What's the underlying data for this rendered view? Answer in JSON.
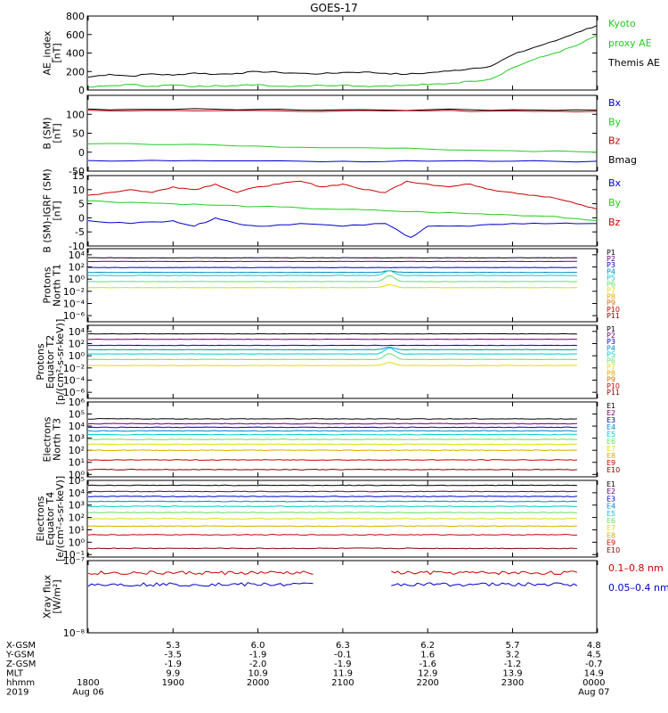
{
  "title": "GOES-17",
  "colors": {
    "black": "#000000",
    "green": "#22cc22",
    "blue": "#0000cc",
    "red": "#cc0000",
    "darkred": "#880000",
    "cyan": "#00cccc",
    "lightgreen": "#66dd66",
    "yellow": "#dddd00",
    "orange": "#dd9900",
    "purple": "#660066",
    "navy": "#000066"
  },
  "chart_data": [
    {
      "id": "ae",
      "type": "line",
      "ylabel": [
        "AE_index",
        "[nT]"
      ],
      "ylim": [
        0,
        800
      ],
      "yscale": "linear",
      "yticks": [
        0,
        200,
        400,
        600,
        800
      ],
      "ytick_labels": [
        "0",
        "200",
        "400",
        "600",
        "800"
      ],
      "legend": [
        {
          "text": "Kyoto",
          "color": "#22cc22"
        },
        {
          "text": "proxy AE",
          "color": "#22cc22"
        },
        {
          "text": "Themis AE",
          "color": "#000000"
        }
      ],
      "series": [
        {
          "color": "#000000",
          "x": [
            0,
            0.25,
            0.5,
            0.75,
            1,
            1.25,
            1.5,
            1.75,
            2,
            2.25,
            2.5,
            2.75,
            3,
            3.25,
            3.5,
            3.75,
            4,
            4.25,
            4.5,
            4.75,
            5,
            5.25,
            5.5,
            5.75,
            6,
            6.25,
            6.5,
            6.75,
            7,
            7.25,
            7.5,
            7.75,
            8
          ],
          "y": [
            140,
            170,
            150,
            175,
            160,
            185,
            170,
            180,
            200,
            190,
            180,
            175,
            190,
            195,
            180,
            170,
            185,
            205,
            230,
            260,
            380,
            460,
            530,
            620,
            700,
            680,
            640,
            560,
            430,
            310,
            230,
            170,
            200
          ]
        },
        {
          "color": "#22cc22",
          "x": [
            0,
            0.25,
            0.5,
            0.75,
            1,
            1.25,
            1.5,
            1.75,
            2,
            2.25,
            2.5,
            2.75,
            3,
            3.25,
            3.5,
            3.75,
            4,
            4.25,
            4.5,
            4.75,
            5,
            5.25,
            5.5,
            5.75,
            6,
            6.25,
            6.5,
            6.75,
            7,
            7.25,
            7.5,
            7.75,
            8
          ],
          "y": [
            30,
            45,
            60,
            40,
            55,
            35,
            50,
            45,
            60,
            40,
            45,
            50,
            55,
            40,
            45,
            50,
            60,
            70,
            95,
            120,
            240,
            330,
            400,
            480,
            590,
            600,
            560,
            460,
            320,
            180,
            120,
            80,
            100
          ]
        }
      ]
    },
    {
      "id": "bsm",
      "type": "line",
      "ylabel": [
        "B (SM)",
        "[nT]"
      ],
      "ylim": [
        -50,
        150
      ],
      "yscale": "linear",
      "yticks": [
        -50,
        0,
        50,
        100
      ],
      "ytick_labels": [
        "-50",
        "0",
        "50",
        "100"
      ],
      "legend": [
        {
          "text": "Bx",
          "color": "#0000cc"
        },
        {
          "text": "By",
          "color": "#22cc22"
        },
        {
          "text": "Bz",
          "color": "#cc0000"
        },
        {
          "text": "Bmag",
          "color": "#000000"
        }
      ],
      "series": [
        {
          "color": "#000000",
          "x": [
            0,
            1,
            2,
            3,
            4,
            5,
            6,
            6.5,
            7,
            7.5,
            8
          ],
          "y": [
            114,
            113,
            113,
            112,
            112,
            112,
            111,
            110,
            107,
            107,
            110
          ]
        },
        {
          "color": "#cc0000",
          "x": [
            0,
            1,
            2,
            3,
            4,
            5,
            6,
            6.5,
            7,
            7.5,
            8
          ],
          "y": [
            111,
            110,
            110,
            109,
            109,
            109,
            108,
            107,
            104,
            104,
            107
          ]
        },
        {
          "color": "#22cc22",
          "x": [
            0,
            1,
            2,
            3,
            4,
            5,
            6,
            6.5,
            7,
            7.5,
            8
          ],
          "y": [
            22,
            20,
            16,
            12,
            8,
            4,
            0,
            -2,
            -5,
            -8,
            -12
          ]
        },
        {
          "color": "#0000cc",
          "x": [
            0,
            1,
            2,
            3,
            4,
            5,
            6,
            6.5,
            7,
            7.5,
            8
          ],
          "y": [
            -22,
            -23,
            -23,
            -24,
            -24,
            -24,
            -24,
            -24,
            -24,
            -23,
            -20
          ]
        }
      ]
    },
    {
      "id": "bdiff",
      "type": "line",
      "ylabel": [
        "B (SM)-IGRF (SM)",
        "[nT]"
      ],
      "ylim": [
        -10,
        15
      ],
      "yscale": "linear",
      "yticks": [
        -10,
        -5,
        0,
        5,
        10,
        15
      ],
      "ytick_labels": [
        "-10",
        "-5",
        "0",
        "5",
        "10",
        "15"
      ],
      "legend": [
        {
          "text": "Bx",
          "color": "#0000cc"
        },
        {
          "text": "By",
          "color": "#22cc22"
        },
        {
          "text": "Bz",
          "color": "#cc0000"
        }
      ],
      "series": [
        {
          "color": "#cc0000",
          "x": [
            0,
            0.25,
            0.5,
            0.75,
            1,
            1.25,
            1.5,
            1.75,
            2,
            2.25,
            2.5,
            2.75,
            3,
            3.25,
            3.5,
            3.75,
            4,
            4.25,
            4.5,
            4.75,
            5,
            5.25,
            5.5,
            5.75,
            6,
            6.25,
            6.5,
            6.75,
            7,
            7.25,
            7.5,
            7.75,
            8
          ],
          "y": [
            8,
            9,
            10,
            9,
            11,
            10,
            12,
            9,
            11,
            12,
            13,
            11,
            12,
            10,
            9,
            13,
            12,
            11,
            12,
            10,
            9,
            8,
            7,
            5,
            3,
            6,
            4,
            0,
            2,
            -1,
            -2,
            0,
            -1
          ]
        },
        {
          "color": "#22cc22",
          "x": [
            0,
            0.5,
            1,
            1.5,
            2,
            2.5,
            3,
            3.5,
            4,
            4.5,
            5,
            5.5,
            6,
            6.5,
            7,
            7.5,
            8
          ],
          "y": [
            6,
            5.5,
            5,
            4.5,
            4,
            3.5,
            3,
            2.5,
            2,
            1.5,
            1,
            0.5,
            -1,
            -3,
            -4,
            -4,
            -3
          ]
        },
        {
          "color": "#0000cc",
          "x": [
            0,
            0.5,
            1,
            1.25,
            1.5,
            1.75,
            2,
            2.5,
            3,
            3.5,
            3.8,
            4,
            4.5,
            5,
            5.5,
            6,
            6.5,
            7,
            7.25,
            7.5,
            7.75,
            8
          ],
          "y": [
            -1,
            -2,
            -1,
            -3,
            0,
            -2,
            -3,
            -2,
            -3,
            -2,
            -7,
            -3,
            -3,
            -2,
            -2,
            -2,
            -3,
            -3,
            -6,
            -1,
            -6,
            -2
          ]
        }
      ]
    },
    {
      "id": "pn",
      "type": "line",
      "ylabel": [
        "Protons",
        "North T1"
      ],
      "ylim": [
        -7,
        5
      ],
      "yscale": "log",
      "yticks": [
        -6,
        -4,
        -2,
        0,
        2,
        4
      ],
      "ytick_labels": [
        "10⁻⁶",
        "10⁻⁴",
        "10⁻²",
        "10⁰",
        "10²",
        "10⁴"
      ],
      "legend": [
        {
          "text": "P1",
          "color": "#000000"
        },
        {
          "text": "P2",
          "color": "#660066"
        },
        {
          "text": "P3",
          "color": "#0000cc"
        },
        {
          "text": "P4",
          "color": "#0088cc"
        },
        {
          "text": "P5",
          "color": "#00cccc"
        },
        {
          "text": "P6",
          "color": "#66dd66"
        },
        {
          "text": "P7",
          "color": "#dddd00"
        },
        {
          "text": "P8",
          "color": "#ddaa00"
        },
        {
          "text": "P9",
          "color": "#dd6600"
        },
        {
          "text": "P10",
          "color": "#cc0000"
        },
        {
          "text": "P11",
          "color": "#880000"
        }
      ],
      "series": [
        {
          "color": "#000000",
          "level": 3.5,
          "bump": 0
        },
        {
          "color": "#660066",
          "level": 2.9,
          "bump": 0
        },
        {
          "color": "#0000cc",
          "level": 1.9,
          "bump": 0
        },
        {
          "color": "#0088cc",
          "level": 1.1,
          "bump": 0.3
        },
        {
          "color": "#00cccc",
          "level": 0.6,
          "bump": 0.8
        },
        {
          "color": "#66dd66",
          "level": -0.4,
          "bump": 1.0
        },
        {
          "color": "#dddd00",
          "level": -1.4,
          "bump": 0.5
        }
      ]
    },
    {
      "id": "pe",
      "type": "line",
      "ylabel": [
        "Protons",
        "Equator T2",
        "[p/(cm²-s-sr-keV)]"
      ],
      "ylim": [
        -7,
        5
      ],
      "yscale": "log",
      "yticks": [
        -6,
        -4,
        -2,
        0,
        2,
        4
      ],
      "ytick_labels": [
        "10⁻⁶",
        "10⁻⁴",
        "10⁻²",
        "10⁰",
        "10²",
        "10⁴"
      ],
      "legend": [
        {
          "text": "P1",
          "color": "#000000"
        },
        {
          "text": "P2",
          "color": "#660066"
        },
        {
          "text": "P3",
          "color": "#0000cc"
        },
        {
          "text": "P4",
          "color": "#0088cc"
        },
        {
          "text": "P5",
          "color": "#00cccc"
        },
        {
          "text": "P6",
          "color": "#66dd66"
        },
        {
          "text": "P7",
          "color": "#dddd00"
        },
        {
          "text": "P8",
          "color": "#ddaa00"
        },
        {
          "text": "P9",
          "color": "#dd6600"
        },
        {
          "text": "P10",
          "color": "#cc0000"
        },
        {
          "text": "P11",
          "color": "#880000"
        }
      ],
      "series": [
        {
          "color": "#000000",
          "level": 3.6,
          "bump": 0
        },
        {
          "color": "#660066",
          "level": 2.7,
          "bump": 0
        },
        {
          "color": "#0000cc",
          "level": 1.7,
          "bump": 0
        },
        {
          "color": "#0088cc",
          "level": 1.0,
          "bump": 0.4
        },
        {
          "color": "#00cccc",
          "level": 0.3,
          "bump": 1.0
        },
        {
          "color": "#66dd66",
          "level": -0.6,
          "bump": 1.0
        },
        {
          "color": "#dddd00",
          "level": -1.6,
          "bump": 0.5
        }
      ]
    },
    {
      "id": "en",
      "type": "line",
      "ylabel": [
        "Electrons",
        "North T3"
      ],
      "ylim": [
        -0.2,
        6
      ],
      "yscale": "log",
      "yticks": [
        0,
        1,
        2,
        3,
        4,
        5,
        6
      ],
      "ytick_labels": [
        "10⁰",
        "10¹",
        "10²",
        "10³",
        "10⁴",
        "10⁵",
        "10⁶"
      ],
      "legend": [
        {
          "text": "E1",
          "color": "#000000"
        },
        {
          "text": "E2",
          "color": "#660066"
        },
        {
          "text": "E3",
          "color": "#0000cc"
        },
        {
          "text": "E4",
          "color": "#0088cc"
        },
        {
          "text": "E5",
          "color": "#00cccc"
        },
        {
          "text": "E6",
          "color": "#66dd66"
        },
        {
          "text": "E7",
          "color": "#dddd00"
        },
        {
          "text": "E8",
          "color": "#ddaa00"
        },
        {
          "text": "E9",
          "color": "#cc0000"
        },
        {
          "text": "E10",
          "color": "#880000"
        }
      ],
      "series": [
        {
          "color": "#000000",
          "level": 4.6,
          "bump": 0
        },
        {
          "color": "#660066",
          "level": 4.2,
          "bump": 0
        },
        {
          "color": "#0000cc",
          "level": 3.9,
          "bump": 0
        },
        {
          "color": "#0088cc",
          "level": 3.6,
          "bump": 0
        },
        {
          "color": "#00cccc",
          "level": 3.3,
          "bump": 0
        },
        {
          "color": "#66dd66",
          "level": 2.9,
          "bump": 0
        },
        {
          "color": "#dddd00",
          "level": 2.5,
          "bump": 0
        },
        {
          "color": "#ddaa00",
          "level": 2.0,
          "bump": 0
        },
        {
          "color": "#cc0000",
          "level": 1.2,
          "bump": 0
        },
        {
          "color": "#880000",
          "level": 0.4,
          "bump": 0
        }
      ]
    },
    {
      "id": "ee",
      "type": "line",
      "ylabel": [
        "Electrons",
        "Equator T4",
        "[e/(cm²-s-sr-keV)]"
      ],
      "ylim": [
        -1.2,
        5
      ],
      "yscale": "log",
      "yticks": [
        -1,
        0,
        1,
        2,
        3,
        4,
        5
      ],
      "ytick_labels": [
        "10⁻¹",
        "10⁰",
        "10¹",
        "10²",
        "10³",
        "10⁴",
        "10⁵"
      ],
      "legend": [
        {
          "text": "E1",
          "color": "#000000"
        },
        {
          "text": "E2",
          "color": "#660066"
        },
        {
          "text": "E3",
          "color": "#0000cc"
        },
        {
          "text": "E4",
          "color": "#0088cc"
        },
        {
          "text": "E5",
          "color": "#00cccc"
        },
        {
          "text": "E6",
          "color": "#66dd66"
        },
        {
          "text": "E7",
          "color": "#dddd00"
        },
        {
          "text": "E8",
          "color": "#ddaa00"
        },
        {
          "text": "E9",
          "color": "#cc0000"
        },
        {
          "text": "E10",
          "color": "#880000"
        }
      ],
      "series": [
        {
          "color": "#000000",
          "level": 4.6,
          "bump": 0
        },
        {
          "color": "#660066",
          "level": 4.1,
          "bump": 0
        },
        {
          "color": "#0000cc",
          "level": 3.7,
          "bump": 0
        },
        {
          "color": "#0088cc",
          "level": 3.3,
          "bump": 0
        },
        {
          "color": "#00cccc",
          "level": 2.9,
          "bump": 0
        },
        {
          "color": "#66dd66",
          "level": 2.4,
          "bump": 0
        },
        {
          "color": "#dddd00",
          "level": 1.9,
          "bump": 0
        },
        {
          "color": "#ddaa00",
          "level": 1.3,
          "bump": 0
        },
        {
          "color": "#cc0000",
          "level": 0.6,
          "bump": 0
        },
        {
          "color": "#880000",
          "level": -0.5,
          "bump": 0
        }
      ]
    },
    {
      "id": "xray",
      "type": "line",
      "ylabel": [
        "Xray flux",
        "[W/m²]"
      ],
      "ylim": [
        -8,
        -7
      ],
      "yscale": "log",
      "yticks": [
        -8,
        -7
      ],
      "ytick_labels": [
        "10⁻⁸",
        "10⁻⁷"
      ],
      "legend": [
        {
          "text": "0.1–0.8 nm",
          "color": "#cc0000"
        },
        {
          "text": "0.05–0.4 nm",
          "color": "#0000cc"
        }
      ],
      "series": [
        {
          "color": "#cc0000",
          "level": -7.17,
          "gap": [
            2.65,
            3.55
          ]
        },
        {
          "color": "#0000cc",
          "level": -7.33,
          "gap": [
            2.65,
            3.55
          ]
        }
      ]
    }
  ],
  "x_axis": {
    "range_hours": [
      0,
      8
    ],
    "row_labels": [
      "X-GSM",
      "Y-GSM",
      "Z-GSM",
      "MLT",
      "hhmm",
      "2019"
    ],
    "columns": [
      {
        "x": 0,
        "values": [
          "",
          "",
          "",
          "",
          "1800",
          "Aug 06"
        ]
      },
      {
        "x": 1,
        "values": [
          "5.3",
          "-3.5",
          "-1.9",
          "9.9",
          "1900",
          ""
        ]
      },
      {
        "x": 2,
        "values": [
          "6.0",
          "-1.9",
          "-2.0",
          "10.9",
          "2000",
          ""
        ]
      },
      {
        "x": 3,
        "values": [
          "6.3",
          "-0.1",
          "-1.9",
          "11.9",
          "2100",
          ""
        ]
      },
      {
        "x": 4,
        "values": [
          "6.2",
          "1.6",
          "-1.6",
          "12.9",
          "2200",
          ""
        ]
      },
      {
        "x": 5,
        "values": [
          "5.7",
          "3.2",
          "-1.2",
          "13.9",
          "2300",
          ""
        ]
      },
      {
        "x": 6,
        "values": [
          "4.8",
          "4.5",
          "-0.7",
          "14.9",
          "0000",
          "Aug 07"
        ]
      }
    ]
  }
}
